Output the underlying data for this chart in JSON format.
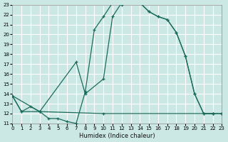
{
  "xlabel": "Humidex (Indice chaleur)",
  "bg_color": "#cce8e4",
  "grid_color": "#ffffff",
  "line_color": "#1a6b5a",
  "xlim": [
    0,
    23
  ],
  "ylim": [
    11,
    23
  ],
  "xticks": [
    0,
    1,
    2,
    3,
    4,
    5,
    6,
    7,
    8,
    9,
    10,
    11,
    12,
    13,
    14,
    15,
    16,
    17,
    18,
    19,
    20,
    21,
    22,
    23
  ],
  "yticks": [
    11,
    12,
    13,
    14,
    15,
    16,
    17,
    18,
    19,
    20,
    21,
    22,
    23
  ],
  "line1_x": [
    0,
    1,
    2,
    3,
    4,
    5,
    6,
    7,
    8,
    9,
    10,
    11,
    12,
    13,
    14,
    15,
    16,
    17,
    18,
    19,
    20,
    21,
    22
  ],
  "line1_y": [
    13.8,
    12.2,
    12.7,
    12.2,
    11.5,
    11.5,
    11.2,
    11.0,
    14.2,
    20.5,
    21.8,
    23.2,
    23.0,
    23.2,
    23.2,
    22.3,
    21.8,
    21.5,
    20.2,
    17.8,
    14.0,
    12.0,
    12.0
  ],
  "line2_x": [
    0,
    1,
    3,
    7,
    8,
    10,
    11,
    12,
    13,
    14,
    15,
    16,
    17,
    18,
    19,
    20,
    21,
    22,
    23
  ],
  "line2_y": [
    13.8,
    12.2,
    12.2,
    17.2,
    14.0,
    15.5,
    21.8,
    23.2,
    23.2,
    23.2,
    22.3,
    21.8,
    21.5,
    20.2,
    17.8,
    14.0,
    12.0,
    12.0,
    12.0
  ],
  "line3_x": [
    0,
    3,
    10,
    22,
    23
  ],
  "line3_y": [
    13.8,
    12.2,
    12.0,
    12.0,
    12.0
  ]
}
